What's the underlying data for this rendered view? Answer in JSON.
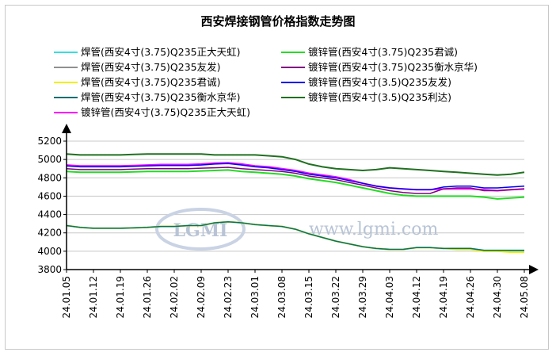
{
  "chart_data": {
    "type": "line",
    "title": "西安焊接钢管价格指数走势图",
    "xlabel": "",
    "ylabel": "",
    "x": [
      "24.01.05",
      "24.01.08",
      "24.01.12",
      "24.01.15",
      "24.01.19",
      "24.01.22",
      "24.01.26",
      "24.01.29",
      "24.02.02",
      "24.02.05",
      "24.02.09",
      "24.02.19",
      "24.02.23",
      "24.02.26",
      "24.03.01",
      "24.03.04",
      "24.03.08",
      "24.03.11",
      "24.03.15",
      "24.03.18",
      "24.03.22",
      "24.03.25",
      "24.03.29",
      "24.04.01",
      "24.04.03",
      "24.04.08",
      "24.04.12",
      "24.04.15",
      "24.04.19",
      "24.04.22",
      "24.04.26",
      "24.04.28",
      "24.04.30",
      "24.05.06",
      "24.05.08"
    ],
    "x_tick_labels": [
      "24.01.05",
      "24.01.12",
      "24.01.19",
      "24.01.26",
      "24.02.02",
      "24.02.09",
      "24.02.23",
      "24.03.01",
      "24.03.08",
      "24.03.15",
      "24.03.22",
      "24.03.29",
      "24.04.03",
      "24.04.12",
      "24.04.19",
      "24.04.26",
      "24.04.30",
      "24.05.08"
    ],
    "y_ticks": [
      3800,
      4000,
      4200,
      4400,
      4600,
      4800,
      5000,
      5200
    ],
    "ylim": [
      3800,
      5200
    ],
    "grid": true,
    "legend_position": "top",
    "watermark": {
      "logo": "LGMI",
      "text": "www.lgmi.com"
    },
    "series": [
      {
        "name": "焊管(西安4寸(3.75)Q235正大天虹)",
        "color": "#33e0e0",
        "width": 2,
        "values": [
          4280,
          4260,
          4250,
          4250,
          4250,
          4255,
          4260,
          4270,
          4270,
          4280,
          4280,
          4310,
          4320,
          4310,
          4290,
          4280,
          4270,
          4240,
          4190,
          4150,
          4110,
          4080,
          4050,
          4030,
          4020,
          4020,
          4040,
          4040,
          4030,
          4030,
          4030,
          4010,
          4010,
          4010,
          4010
        ]
      },
      {
        "name": "焊管(西安4寸(3.75)Q235友发)",
        "color": "#909090",
        "width": 1.5,
        "values": [
          4280,
          4260,
          4250,
          4250,
          4250,
          4255,
          4260,
          4270,
          4270,
          4280,
          4280,
          4310,
          4320,
          4310,
          4290,
          4280,
          4270,
          4240,
          4190,
          4150,
          4110,
          4080,
          4050,
          4030,
          4020,
          4020,
          4040,
          4040,
          4030,
          4030,
          4030,
          4010,
          4010,
          4010,
          4010
        ]
      },
      {
        "name": "焊管(西安4寸(3.75)Q235君诚)",
        "color": "#f0f000",
        "width": 2,
        "values": [
          4280,
          4260,
          4250,
          4250,
          4250,
          4255,
          4260,
          4270,
          4270,
          4280,
          4280,
          4310,
          4320,
          4310,
          4290,
          4280,
          4270,
          4240,
          4190,
          4150,
          4110,
          4080,
          4050,
          4030,
          4020,
          4020,
          4040,
          4040,
          4030,
          4020,
          4020,
          4000,
          4000,
          3990,
          3990
        ]
      },
      {
        "name": "焊管(西安4寸(3.75)Q235衡水京华)",
        "color": "#0a6e6e",
        "width": 1.5,
        "values": [
          4280,
          4260,
          4250,
          4250,
          4250,
          4255,
          4260,
          4270,
          4270,
          4280,
          4280,
          4310,
          4320,
          4310,
          4290,
          4280,
          4270,
          4240,
          4190,
          4150,
          4110,
          4080,
          4050,
          4030,
          4020,
          4020,
          4040,
          4040,
          4030,
          4030,
          4030,
          4010,
          4010,
          4010,
          4010
        ]
      },
      {
        "name": "镀锌管(西安4寸(3.75)Q235正大天虹)",
        "color": "#ff00ff",
        "width": 2,
        "values": [
          4940,
          4930,
          4930,
          4930,
          4930,
          4935,
          4940,
          4945,
          4945,
          4945,
          4950,
          4960,
          4965,
          4950,
          4930,
          4920,
          4900,
          4880,
          4850,
          4830,
          4810,
          4780,
          4740,
          4710,
          4690,
          4680,
          4670,
          4670,
          4680,
          4680,
          4680,
          4670,
          4660,
          4670,
          4680
        ]
      },
      {
        "name": "镀锌管(西安4寸(3.75)Q235君诚)",
        "color": "#22dd22",
        "width": 2,
        "values": [
          4870,
          4860,
          4860,
          4860,
          4860,
          4865,
          4870,
          4870,
          4870,
          4870,
          4875,
          4880,
          4885,
          4870,
          4860,
          4850,
          4840,
          4820,
          4790,
          4770,
          4750,
          4720,
          4690,
          4660,
          4630,
          4610,
          4600,
          4600,
          4600,
          4600,
          4600,
          4590,
          4570,
          4580,
          4590
        ]
      },
      {
        "name": "镀锌管(西安4寸(3.75)Q235衡水京华)",
        "color": "#800080",
        "width": 1.5,
        "values": [
          4900,
          4890,
          4890,
          4890,
          4890,
          4895,
          4900,
          4900,
          4900,
          4900,
          4905,
          4910,
          4915,
          4900,
          4890,
          4880,
          4870,
          4850,
          4820,
          4800,
          4780,
          4750,
          4720,
          4690,
          4660,
          4640,
          4630,
          4630,
          4680,
          4690,
          4690,
          4660,
          4660,
          4670,
          4680
        ]
      },
      {
        "name": "镀锌管(西安4寸(3.5)Q235友发)",
        "color": "#0000ee",
        "width": 1.5,
        "values": [
          4930,
          4920,
          4920,
          4920,
          4920,
          4925,
          4930,
          4935,
          4935,
          4935,
          4940,
          4950,
          4955,
          4940,
          4920,
          4910,
          4890,
          4870,
          4840,
          4820,
          4800,
          4770,
          4740,
          4710,
          4690,
          4680,
          4670,
          4670,
          4700,
          4710,
          4710,
          4690,
          4690,
          4700,
          4710
        ]
      },
      {
        "name": "镀锌管(西安4寸(3.5)Q235利达)",
        "color": "#207020",
        "width": 2,
        "values": [
          5060,
          5050,
          5050,
          5050,
          5050,
          5055,
          5060,
          5060,
          5060,
          5060,
          5060,
          5050,
          5050,
          5050,
          5050,
          5040,
          5030,
          5000,
          4950,
          4920,
          4900,
          4890,
          4880,
          4890,
          4910,
          4900,
          4890,
          4880,
          4870,
          4860,
          4850,
          4840,
          4830,
          4840,
          4860
        ]
      }
    ]
  }
}
